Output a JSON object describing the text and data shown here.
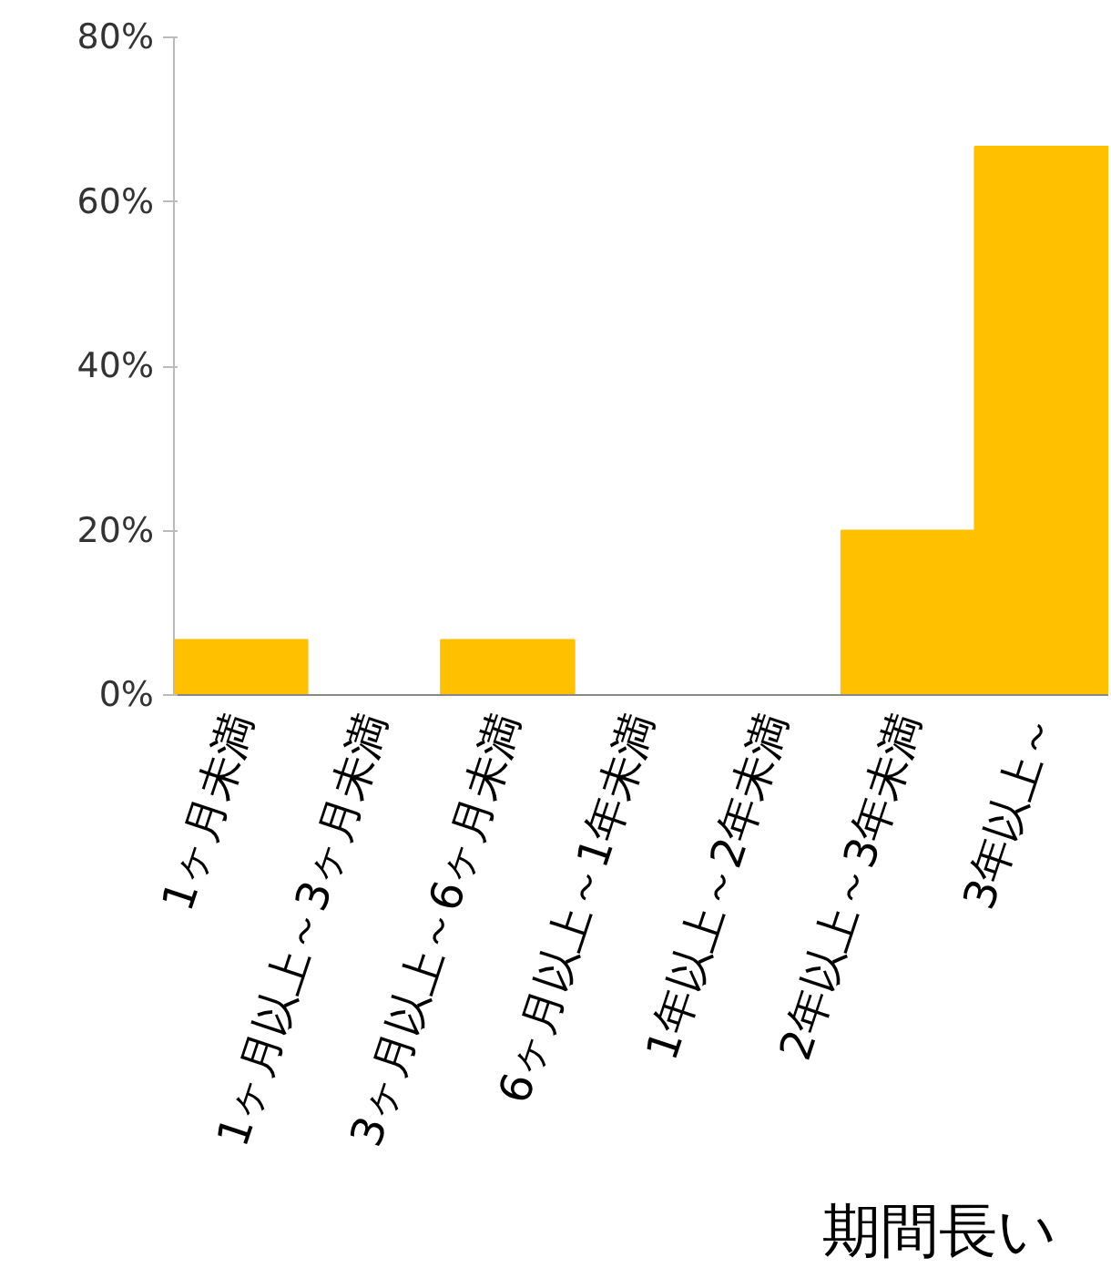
{
  "chart_data": {
    "type": "bar",
    "categories": [
      "1ヶ月未満",
      "1ヶ月以上～3ヶ月未満",
      "3ヶ月以上～6ヶ月未満",
      "6ヶ月以上～1年未満",
      "1年以上～2年未満",
      "2年以上～3年未満",
      "3年以上～"
    ],
    "values": [
      6.7,
      0,
      6.7,
      0,
      0,
      20,
      66.7
    ],
    "color": "#ffc000",
    "ylim": [
      0,
      80
    ],
    "yticks": [
      {
        "value": 0,
        "label": "0%"
      },
      {
        "value": 20,
        "label": "20%"
      },
      {
        "value": 40,
        "label": "40%"
      },
      {
        "value": 60,
        "label": "60%"
      },
      {
        "value": 80,
        "label": "80%"
      }
    ],
    "grid": false,
    "annotations": [
      "期間長い"
    ]
  }
}
